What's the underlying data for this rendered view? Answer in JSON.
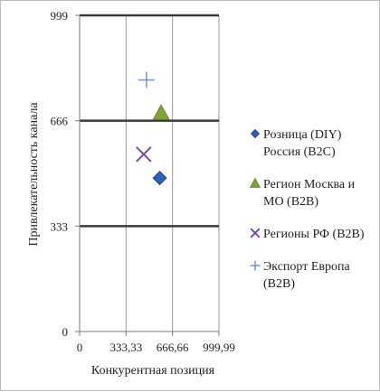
{
  "chart_data": {
    "type": "scatter",
    "title": "",
    "xlabel": "Конкурентная позиция",
    "ylabel": "Привлекательность канала",
    "xlim": [
      0,
      999.99
    ],
    "ylim": [
      0,
      999
    ],
    "x_ticks": [
      "0",
      "333,33",
      "666,66",
      "999,99"
    ],
    "x_tick_values": [
      0,
      333.33,
      666.66,
      999.99
    ],
    "y_ticks": [
      "0",
      "333",
      "666",
      "999"
    ],
    "y_tick_values": [
      0,
      333,
      666,
      999
    ],
    "grid": "horizontal and vertical at ticks",
    "legend_position": "right",
    "series": [
      {
        "name": "Розница (DIY) Россия (B2C)",
        "marker": "diamond",
        "color": "#2f5fb5",
        "x": 575,
        "y": 485
      },
      {
        "name": "Регион Москва и МО (B2B)",
        "marker": "triangle",
        "color": "#7ea43a",
        "x": 585,
        "y": 690
      },
      {
        "name": "Регионы РФ (B2B)",
        "marker": "x",
        "color": "#7b4aa0",
        "x": 460,
        "y": 560
      },
      {
        "name": "Экспорт Европа (B2B)",
        "marker": "plus",
        "color": "#6e95cf",
        "x": 480,
        "y": 795
      }
    ]
  }
}
